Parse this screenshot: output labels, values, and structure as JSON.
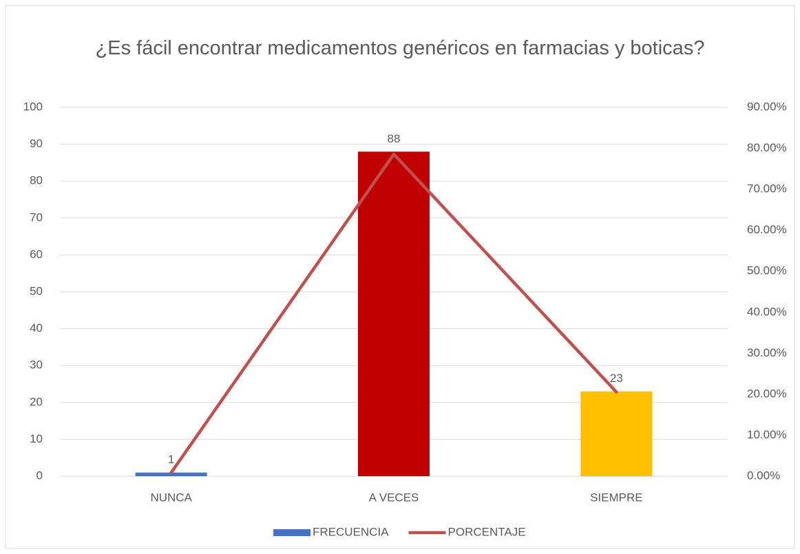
{
  "chart_data": {
    "type": "bar+line",
    "title": "¿Es fácil encontrar medicamentos genéricos en farmacias y boticas?",
    "categories": [
      "NUNCA",
      "A  VECES",
      "SIEMPRE"
    ],
    "series": [
      {
        "name": "FRECUENCIA",
        "type": "bar",
        "color": "#4472c4",
        "colors": [
          "#4472c4",
          "#c00000",
          "#ffc000"
        ],
        "values": [
          1,
          88,
          23
        ]
      },
      {
        "name": "PORCENTAJE",
        "type": "line",
        "axis": "y2",
        "color": "#c0504d",
        "values": [
          0.89,
          78.57,
          20.54
        ]
      }
    ],
    "ylim": [
      0,
      100
    ],
    "yticks": [
      0,
      10,
      20,
      30,
      40,
      50,
      60,
      70,
      80,
      90,
      100
    ],
    "y2lim": [
      0,
      90
    ],
    "y2ticks": [
      {
        "value": 0,
        "label": "0.00%"
      },
      {
        "value": 10,
        "label": "10.00%"
      },
      {
        "value": 20,
        "label": "20.00%"
      },
      {
        "value": 30,
        "label": "30.00%"
      },
      {
        "value": 40,
        "label": "40.00%"
      },
      {
        "value": 50,
        "label": "50.00%"
      },
      {
        "value": 60,
        "label": "60.00%"
      },
      {
        "value": 70,
        "label": "70.00%"
      },
      {
        "value": 80,
        "label": "80.00%"
      },
      {
        "value": 90,
        "label": "90.00%"
      }
    ],
    "grid": true,
    "legend": "bottom"
  }
}
